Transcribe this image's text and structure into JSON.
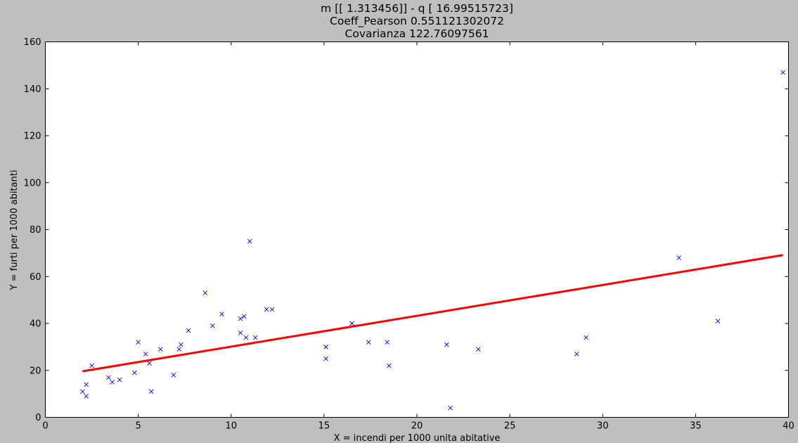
{
  "chart_data": {
    "type": "scatter",
    "title_lines": [
      "m [[ 1.313456]] - q [ 16.99515723]",
      "Coeff_Pearson 0.551121302072",
      "Covarianza 122.76097561"
    ],
    "xlabel": "X = incendi per 1000 unita abitative",
    "ylabel": "Y = furti per 1000 abitanti",
    "xlim": [
      0,
      40
    ],
    "ylim": [
      0,
      160
    ],
    "xticks": [
      0,
      5,
      10,
      15,
      20,
      25,
      30,
      35,
      40
    ],
    "yticks": [
      0,
      20,
      40,
      60,
      80,
      100,
      120,
      140,
      160
    ],
    "grid": false,
    "series": [
      {
        "type": "scatter",
        "marker": "x",
        "color": "#0000ff",
        "points": [
          [
            2.0,
            11
          ],
          [
            2.2,
            14
          ],
          [
            2.2,
            9
          ],
          [
            2.5,
            22
          ],
          [
            3.4,
            17
          ],
          [
            3.6,
            15
          ],
          [
            4.0,
            16
          ],
          [
            4.8,
            19
          ],
          [
            5.0,
            32
          ],
          [
            5.4,
            27
          ],
          [
            5.6,
            23
          ],
          [
            5.7,
            11
          ],
          [
            6.2,
            29
          ],
          [
            6.9,
            18
          ],
          [
            7.2,
            29
          ],
          [
            7.3,
            31
          ],
          [
            7.7,
            37
          ],
          [
            8.6,
            53
          ],
          [
            9.0,
            39
          ],
          [
            9.5,
            44
          ],
          [
            10.5,
            36
          ],
          [
            10.5,
            42
          ],
          [
            10.7,
            43
          ],
          [
            10.8,
            34
          ],
          [
            11.0,
            75
          ],
          [
            11.3,
            34
          ],
          [
            11.9,
            46
          ],
          [
            12.2,
            46
          ],
          [
            15.1,
            30
          ],
          [
            15.1,
            25
          ],
          [
            16.5,
            40
          ],
          [
            17.4,
            32
          ],
          [
            18.4,
            32
          ],
          [
            18.5,
            22
          ],
          [
            21.6,
            31
          ],
          [
            21.8,
            4
          ],
          [
            23.3,
            29
          ],
          [
            28.6,
            27
          ],
          [
            29.1,
            34
          ],
          [
            34.1,
            68
          ],
          [
            36.2,
            41
          ],
          [
            39.7,
            147
          ]
        ]
      },
      {
        "type": "line",
        "color": "#ff0000",
        "slope": 1.313456,
        "intercept": 16.99515723,
        "x": [
          2.0,
          39.7
        ],
        "y": [
          19.62,
          69.14
        ]
      }
    ]
  }
}
